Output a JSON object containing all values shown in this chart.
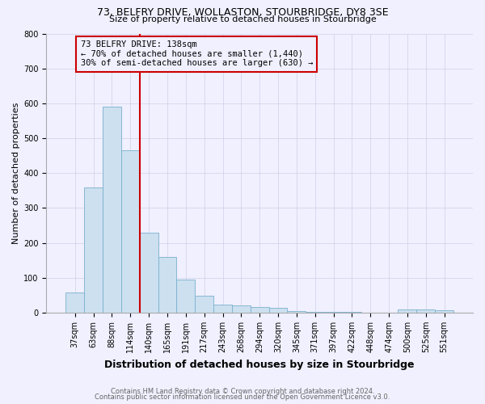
{
  "title": "73, BELFRY DRIVE, WOLLASTON, STOURBRIDGE, DY8 3SE",
  "subtitle": "Size of property relative to detached houses in Stourbridge",
  "xlabel": "Distribution of detached houses by size in Stourbridge",
  "ylabel": "Number of detached properties",
  "footer1": "Contains HM Land Registry data © Crown copyright and database right 2024.",
  "footer2": "Contains public sector information licensed under the Open Government Licence v3.0.",
  "annotation_line1": "73 BELFRY DRIVE: 138sqm",
  "annotation_line2": "← 70% of detached houses are smaller (1,440)",
  "annotation_line3": "30% of semi-detached houses are larger (630) →",
  "bin_labels": [
    "37sqm",
    "63sqm",
    "88sqm",
    "114sqm",
    "140sqm",
    "165sqm",
    "191sqm",
    "217sqm",
    "243sqm",
    "268sqm",
    "294sqm",
    "320sqm",
    "345sqm",
    "371sqm",
    "397sqm",
    "422sqm",
    "448sqm",
    "474sqm",
    "500sqm",
    "525sqm",
    "551sqm"
  ],
  "bar_heights": [
    58,
    358,
    590,
    465,
    230,
    160,
    95,
    48,
    22,
    20,
    16,
    13,
    4,
    3,
    2,
    2,
    1,
    0,
    10,
    8,
    6
  ],
  "bar_color": "#cce0f0",
  "bar_edge_color": "#7ab0cc",
  "vline_color": "#cc0000",
  "vline_x_data": 3.5,
  "annotation_box_color": "#cc0000",
  "ylim": [
    0,
    800
  ],
  "yticks": [
    0,
    100,
    200,
    300,
    400,
    500,
    600,
    700,
    800
  ],
  "bg_color": "#f0f0ff",
  "grid_color": "#d0d0e8",
  "title_fontsize": 9,
  "subtitle_fontsize": 8,
  "ylabel_fontsize": 8,
  "xlabel_fontsize": 9,
  "tick_fontsize": 7,
  "footer_fontsize": 6,
  "annotation_fontsize": 7.5
}
